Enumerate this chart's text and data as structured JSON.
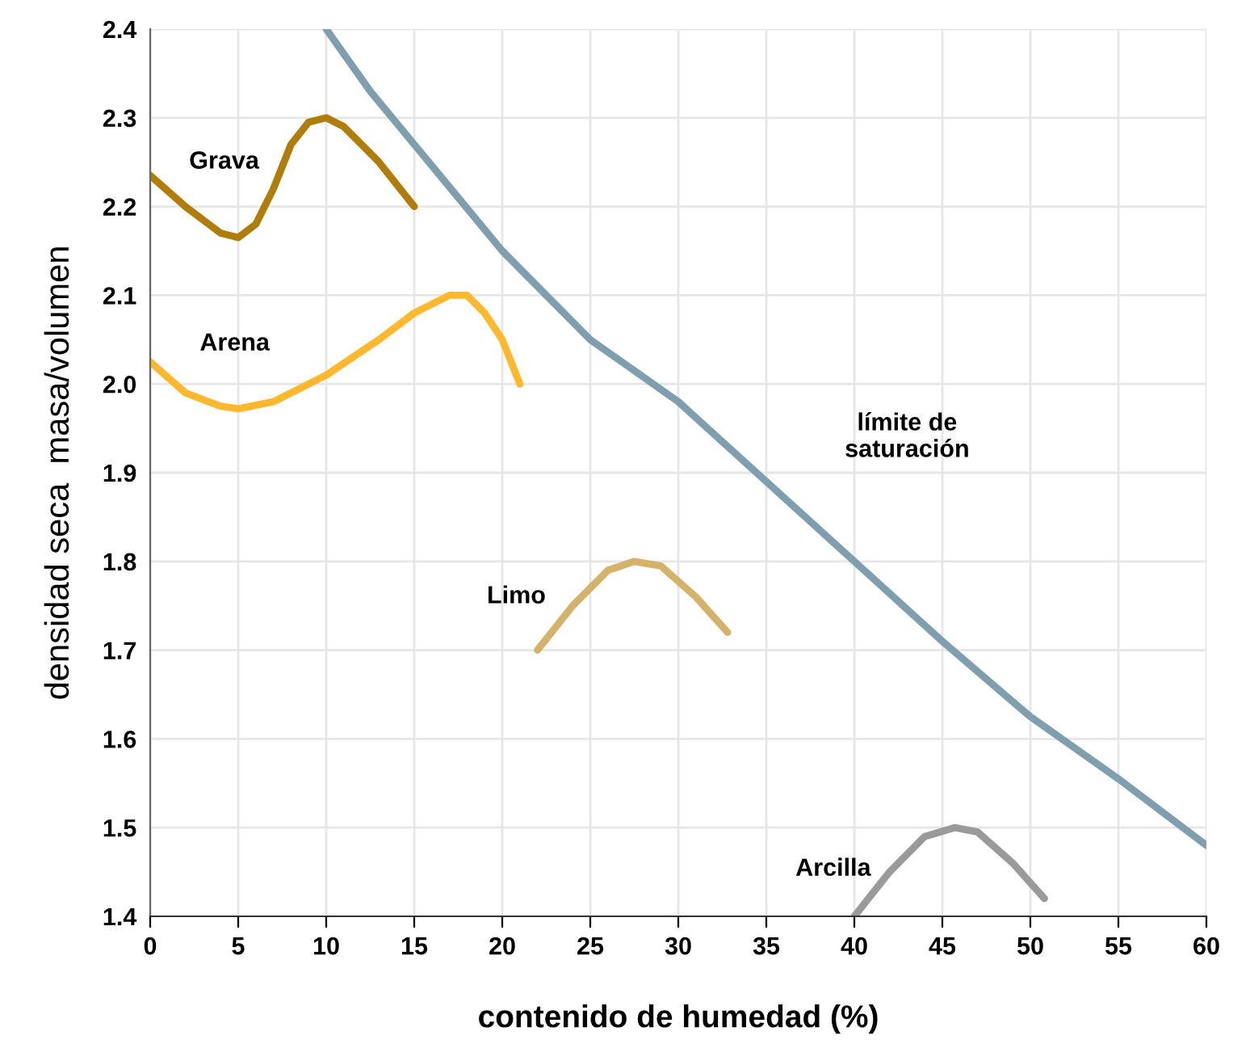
{
  "chart_data": {
    "type": "line",
    "xlabel": "contenido de humedad (%)",
    "ylabel": "densidad seca  masa/volumen",
    "xlim": [
      0,
      60
    ],
    "ylim": [
      1.4,
      2.4
    ],
    "xticks": [
      0,
      5,
      10,
      15,
      20,
      25,
      30,
      35,
      40,
      45,
      50,
      55,
      60
    ],
    "yticks": [
      1.4,
      1.5,
      1.6,
      1.7,
      1.8,
      1.9,
      {
        "value": 2.0,
        "label": "2.0"
      },
      2.1,
      2.2,
      2.3,
      2.4
    ],
    "grid": true,
    "marker": "none",
    "line_style": "solid",
    "series": [
      {
        "name": "Grava",
        "color": "#b07d0a",
        "x": [
          0,
          2,
          4,
          5,
          6,
          7,
          8,
          9,
          10,
          11,
          12,
          13,
          14,
          15
        ],
        "values": [
          2.235,
          2.2,
          2.17,
          2.165,
          2.18,
          2.22,
          2.27,
          2.295,
          2.3,
          2.29,
          2.27,
          2.25,
          2.225,
          2.2
        ]
      },
      {
        "name": "Arena",
        "color": "#fdb82e",
        "x": [
          0,
          2,
          4,
          5,
          7,
          10,
          13,
          15,
          17,
          18,
          19,
          20,
          21
        ],
        "values": [
          2.025,
          1.99,
          1.975,
          1.972,
          1.98,
          2.01,
          2.05,
          2.08,
          2.1,
          2.1,
          2.08,
          2.05,
          2.0
        ]
      },
      {
        "name": "Limo",
        "color": "#d4b26a",
        "x": [
          22,
          24,
          26,
          27.5,
          29,
          31,
          32.8
        ],
        "values": [
          1.7,
          1.75,
          1.79,
          1.8,
          1.795,
          1.76,
          1.72
        ]
      },
      {
        "name": "Arcilla",
        "color": "#9a9a9a",
        "x": [
          40,
          42,
          44,
          45.7,
          47,
          49,
          50.8
        ],
        "values": [
          1.4,
          1.45,
          1.49,
          1.5,
          1.495,
          1.46,
          1.42
        ]
      },
      {
        "name": "límite de\nsaturación",
        "color": "#7f9faf",
        "x": [
          10,
          12.5,
          15,
          17.5,
          20,
          25,
          30,
          35,
          40,
          45,
          50,
          55,
          60
        ],
        "values": [
          2.4,
          2.33,
          2.27,
          2.21,
          2.15,
          2.05,
          1.98,
          1.89,
          1.8,
          1.71,
          1.625,
          1.555,
          1.48
        ]
      }
    ]
  }
}
